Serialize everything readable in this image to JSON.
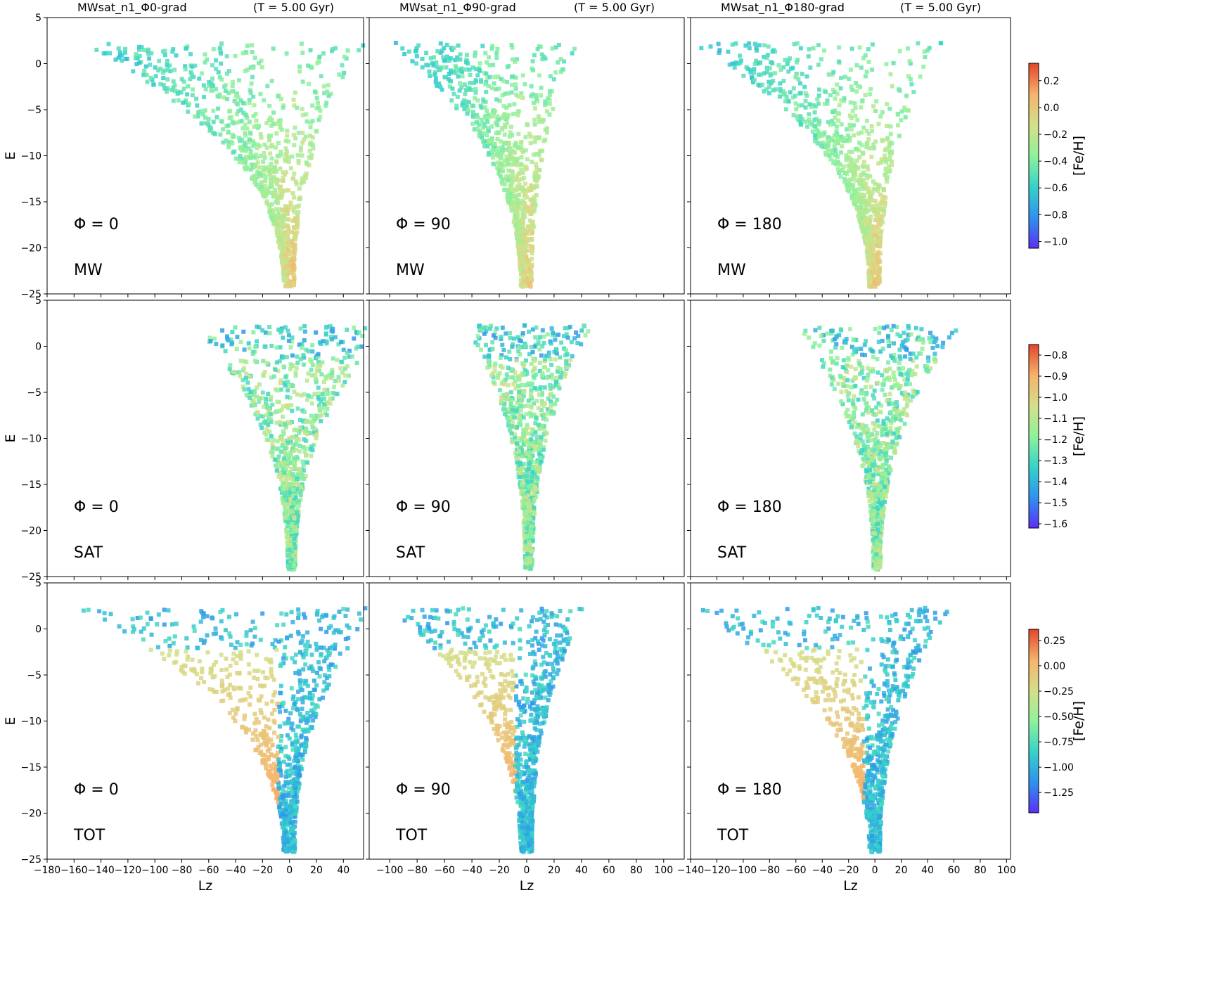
{
  "chart_data": {
    "type": "heatmap",
    "column_titles": [
      {
        "title": "MWsat_n1_Φ0-grad",
        "time": "(T = 5.00 Gyr)"
      },
      {
        "title": "MWsat_n1_Φ90-grad",
        "time": "(T = 5.00 Gyr)"
      },
      {
        "title": "MWsat_n1_Φ180-grad",
        "time": "(T = 5.00 Gyr)"
      }
    ],
    "ylabel": "E",
    "xlabel": "Lz",
    "ylim": [
      -25,
      5
    ],
    "yticks": [
      5,
      0,
      -5,
      -10,
      -15,
      -20,
      -25
    ],
    "columns": [
      {
        "phi": 0,
        "xlim": [
          -180,
          55
        ],
        "xticks": [
          -180,
          -160,
          -140,
          -120,
          -100,
          -80,
          -60,
          -40,
          -20,
          0,
          20,
          40
        ]
      },
      {
        "phi": 90,
        "xlim": [
          -115,
          115
        ],
        "xticks": [
          -100,
          -80,
          -60,
          -40,
          -20,
          0,
          20,
          40,
          60,
          80,
          100
        ]
      },
      {
        "phi": 180,
        "xlim": [
          -140,
          103
        ],
        "xticks": [
          -140,
          -120,
          -100,
          -80,
          -60,
          -40,
          -20,
          0,
          20,
          40,
          60,
          80,
          100
        ]
      }
    ],
    "rows": [
      {
        "component": "MW",
        "colorbar": {
          "label": "[Fe/H]",
          "min": -1.05,
          "max": 0.33,
          "ticks": [
            0.2,
            0.0,
            -0.2,
            -0.4,
            -0.6,
            -0.8,
            -1.0
          ],
          "tick_labels": [
            "0.2",
            "0.0",
            "−0.2",
            "−0.4",
            "−0.6",
            "−0.8",
            "−1.0"
          ]
        }
      },
      {
        "component": "SAT",
        "colorbar": {
          "label": "[Fe/H]",
          "min": -1.62,
          "max": -0.75,
          "ticks": [
            -0.8,
            -0.9,
            -1.0,
            -1.1,
            -1.2,
            -1.3,
            -1.4,
            -1.5,
            -1.6
          ],
          "tick_labels": [
            "−0.8",
            "−0.9",
            "−1.0",
            "−1.1",
            "−1.2",
            "−1.3",
            "−1.4",
            "−1.5",
            "−1.6"
          ]
        }
      },
      {
        "component": "TOT",
        "colorbar": {
          "label": "[Fe/H]",
          "min": -1.45,
          "max": 0.36,
          "ticks": [
            0.25,
            0.0,
            -0.25,
            -0.5,
            -0.75,
            -1.0,
            -1.25
          ],
          "tick_labels": [
            "0.25",
            "0.00",
            "−0.25",
            "−0.50",
            "−0.75",
            "−1.00",
            "−1.25"
          ]
        }
      }
    ],
    "panel_labels": [
      [
        "Φ = 0",
        "Φ = 90",
        "Φ = 180"
      ],
      [
        "Φ = 0",
        "Φ = 90",
        "Φ = 180"
      ],
      [
        "Φ = 0",
        "Φ = 90",
        "Φ = 180"
      ]
    ],
    "colormap": "rainbow",
    "colormap_stops": [
      "#5a2ff5",
      "#2f8ff0",
      "#35d2c9",
      "#8ff29a",
      "#d2e08a",
      "#f6b46c",
      "#e2452b"
    ]
  }
}
